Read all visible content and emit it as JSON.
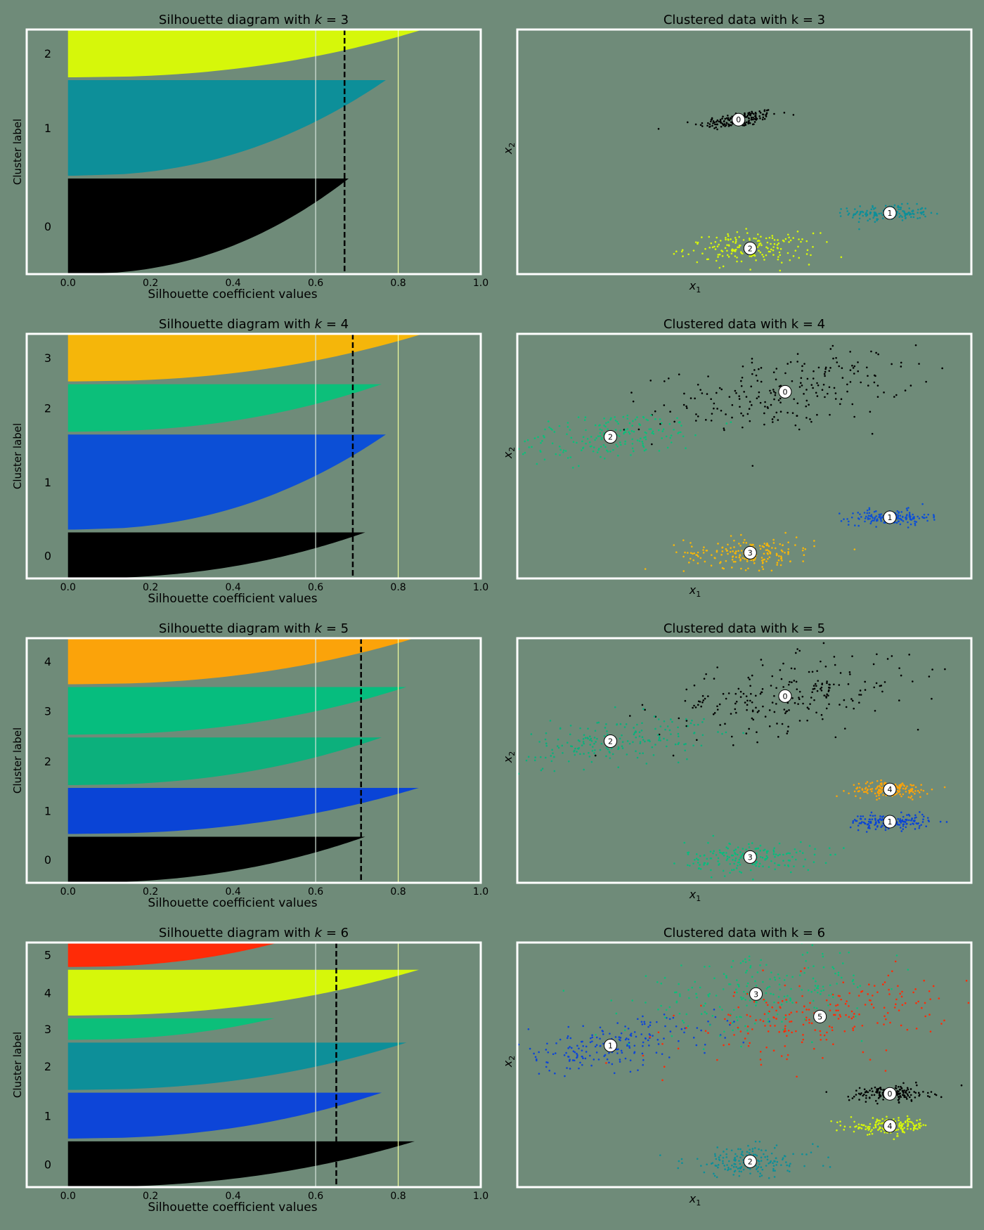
{
  "figure": {
    "background": "#6f8b79",
    "frame_color": "#ffffff"
  },
  "chart_data": [
    {
      "id": "sil-k3",
      "type": "area",
      "k": 3,
      "title_prefix": "Silhouette diagram with ",
      "title_var": "k",
      "title_suffix": " = 3",
      "xlabel": "Silhouette coefficient values",
      "ylabel": "Cluster label",
      "xlim": [
        -0.1,
        1.0
      ],
      "xticks": [
        0.0,
        0.2,
        0.4,
        0.6,
        0.8,
        1.0
      ],
      "xtick_labels": [
        "0.0",
        "0.2",
        "0.4",
        "0.6",
        "0.8",
        "1.0"
      ],
      "avg_silhouette": 0.67,
      "reference_lines": [
        0.6,
        0.8
      ],
      "clusters": [
        {
          "label": "0",
          "count": 620,
          "max": 0.68,
          "color": "#000000"
        },
        {
          "label": "1",
          "count": 620,
          "max": 0.77,
          "color": "#0d8f99"
        },
        {
          "label": "2",
          "count": 310,
          "max": 0.86,
          "color": "#d6f70a"
        }
      ]
    },
    {
      "id": "scatter-k3",
      "type": "scatter",
      "k": 3,
      "title": "Clustered data with k = 3",
      "xlabel_base": "x",
      "xlabel_sub": "1",
      "ylabel_base": "x",
      "ylabel_sub": "2",
      "centroids": [
        {
          "label": "0",
          "x": -0.3,
          "y": 1.8,
          "color": "#000000"
        },
        {
          "label": "1",
          "x": 1.0,
          "y": 0.35,
          "color": "#0d8f99"
        },
        {
          "label": "2",
          "x": -0.2,
          "y": -0.2,
          "color": "#d6f70a"
        }
      ]
    },
    {
      "id": "sil-k4",
      "type": "area",
      "k": 4,
      "title_prefix": "Silhouette diagram with ",
      "title_var": "k",
      "title_suffix": " = 4",
      "xlabel": "Silhouette coefficient values",
      "ylabel": "Cluster label",
      "xlim": [
        -0.1,
        1.0
      ],
      "xticks": [
        0.0,
        0.2,
        0.4,
        0.6,
        0.8,
        1.0
      ],
      "xtick_labels": [
        "0.0",
        "0.2",
        "0.4",
        "0.6",
        "0.8",
        "1.0"
      ],
      "avg_silhouette": 0.69,
      "reference_lines": [
        0.6,
        0.8
      ],
      "clusters": [
        {
          "label": "0",
          "count": 300,
          "max": 0.72,
          "color": "#000000"
        },
        {
          "label": "1",
          "count": 620,
          "max": 0.77,
          "color": "#0c4fd6"
        },
        {
          "label": "2",
          "count": 310,
          "max": 0.76,
          "color": "#0cbf7a"
        },
        {
          "label": "3",
          "count": 310,
          "max": 0.86,
          "color": "#f5b60a"
        }
      ]
    },
    {
      "id": "scatter-k4",
      "type": "scatter",
      "k": 4,
      "title": "Clustered data with k = 4",
      "xlabel_base": "x",
      "xlabel_sub": "1",
      "ylabel_base": "x",
      "ylabel_sub": "2",
      "centroids": [
        {
          "label": "0",
          "x": 0.1,
          "y": 2.3,
          "color": "#000000"
        },
        {
          "label": "1",
          "x": 1.0,
          "y": 0.35,
          "color": "#0c4fd6"
        },
        {
          "label": "2",
          "x": -1.4,
          "y": 1.6,
          "color": "#0cbf7a"
        },
        {
          "label": "3",
          "x": -0.2,
          "y": -0.2,
          "color": "#f5b60a"
        }
      ]
    },
    {
      "id": "sil-k5",
      "type": "area",
      "k": 5,
      "title_prefix": "Silhouette diagram with ",
      "title_var": "k",
      "title_suffix": " = 5",
      "xlabel": "Silhouette coefficient values",
      "ylabel": "Cluster label",
      "xlim": [
        -0.1,
        1.0
      ],
      "xticks": [
        0.0,
        0.2,
        0.4,
        0.6,
        0.8,
        1.0
      ],
      "xtick_labels": [
        "0.0",
        "0.2",
        "0.4",
        "0.6",
        "0.8",
        "1.0"
      ],
      "avg_silhouette": 0.71,
      "reference_lines": [
        0.6,
        0.8
      ],
      "clusters": [
        {
          "label": "0",
          "count": 300,
          "max": 0.72,
          "color": "#000000"
        },
        {
          "label": "1",
          "count": 300,
          "max": 0.85,
          "color": "#0a44d6"
        },
        {
          "label": "2",
          "count": 310,
          "max": 0.76,
          "color": "#0cb07c"
        },
        {
          "label": "3",
          "count": 310,
          "max": 0.82,
          "color": "#06bd7e"
        },
        {
          "label": "4",
          "count": 300,
          "max": 0.84,
          "color": "#fba30a"
        }
      ]
    },
    {
      "id": "scatter-k5",
      "type": "scatter",
      "k": 5,
      "title": "Clustered data with k = 5",
      "xlabel_base": "x",
      "xlabel_sub": "1",
      "ylabel_base": "x",
      "ylabel_sub": "2",
      "centroids": [
        {
          "label": "0",
          "x": 0.1,
          "y": 2.3,
          "color": "#000000"
        },
        {
          "label": "1",
          "x": 1.0,
          "y": 0.35,
          "color": "#0a44d6"
        },
        {
          "label": "2",
          "x": -1.4,
          "y": 1.6,
          "color": "#0cb07c"
        },
        {
          "label": "3",
          "x": -0.2,
          "y": -0.2,
          "color": "#06bd7e"
        },
        {
          "label": "4",
          "x": 1.0,
          "y": 0.85,
          "color": "#fba30a"
        }
      ]
    },
    {
      "id": "sil-k6",
      "type": "area",
      "k": 6,
      "title_prefix": "Silhouette diagram with ",
      "title_var": "k",
      "title_suffix": " = 6",
      "xlabel": "Silhouette coefficient values",
      "ylabel": "Cluster label",
      "xlim": [
        -0.1,
        1.0
      ],
      "xticks": [
        0.0,
        0.2,
        0.4,
        0.6,
        0.8,
        1.0
      ],
      "xtick_labels": [
        "0.0",
        "0.2",
        "0.4",
        "0.6",
        "0.8",
        "1.0"
      ],
      "avg_silhouette": 0.65,
      "reference_lines": [
        0.6,
        0.8
      ],
      "clusters": [
        {
          "label": "0",
          "count": 300,
          "max": 0.84,
          "color": "#000000"
        },
        {
          "label": "1",
          "count": 300,
          "max": 0.76,
          "color": "#0d45d8"
        },
        {
          "label": "2",
          "count": 310,
          "max": 0.82,
          "color": "#0d8f99"
        },
        {
          "label": "3",
          "count": 140,
          "max": 0.5,
          "color": "#0cbf7a"
        },
        {
          "label": "4",
          "count": 300,
          "max": 0.85,
          "color": "#d6f70a"
        },
        {
          "label": "5",
          "count": 160,
          "max": 0.51,
          "color": "#ff2b07"
        }
      ]
    },
    {
      "id": "scatter-k6",
      "type": "scatter",
      "k": 6,
      "title": "Clustered data with k = 6",
      "xlabel_base": "x",
      "xlabel_sub": "1",
      "ylabel_base": "x",
      "ylabel_sub": "2",
      "centroids": [
        {
          "label": "0",
          "x": 1.0,
          "y": 0.85,
          "color": "#000000"
        },
        {
          "label": "1",
          "x": -1.4,
          "y": 1.6,
          "color": "#0d45d8"
        },
        {
          "label": "2",
          "x": -0.2,
          "y": -0.2,
          "color": "#0d8f99"
        },
        {
          "label": "3",
          "x": -0.15,
          "y": 2.4,
          "color": "#0cbf7a"
        },
        {
          "label": "4",
          "x": 1.0,
          "y": 0.35,
          "color": "#d6f70a"
        },
        {
          "label": "5",
          "x": 0.4,
          "y": 2.05,
          "color": "#ff2b07"
        }
      ]
    }
  ]
}
